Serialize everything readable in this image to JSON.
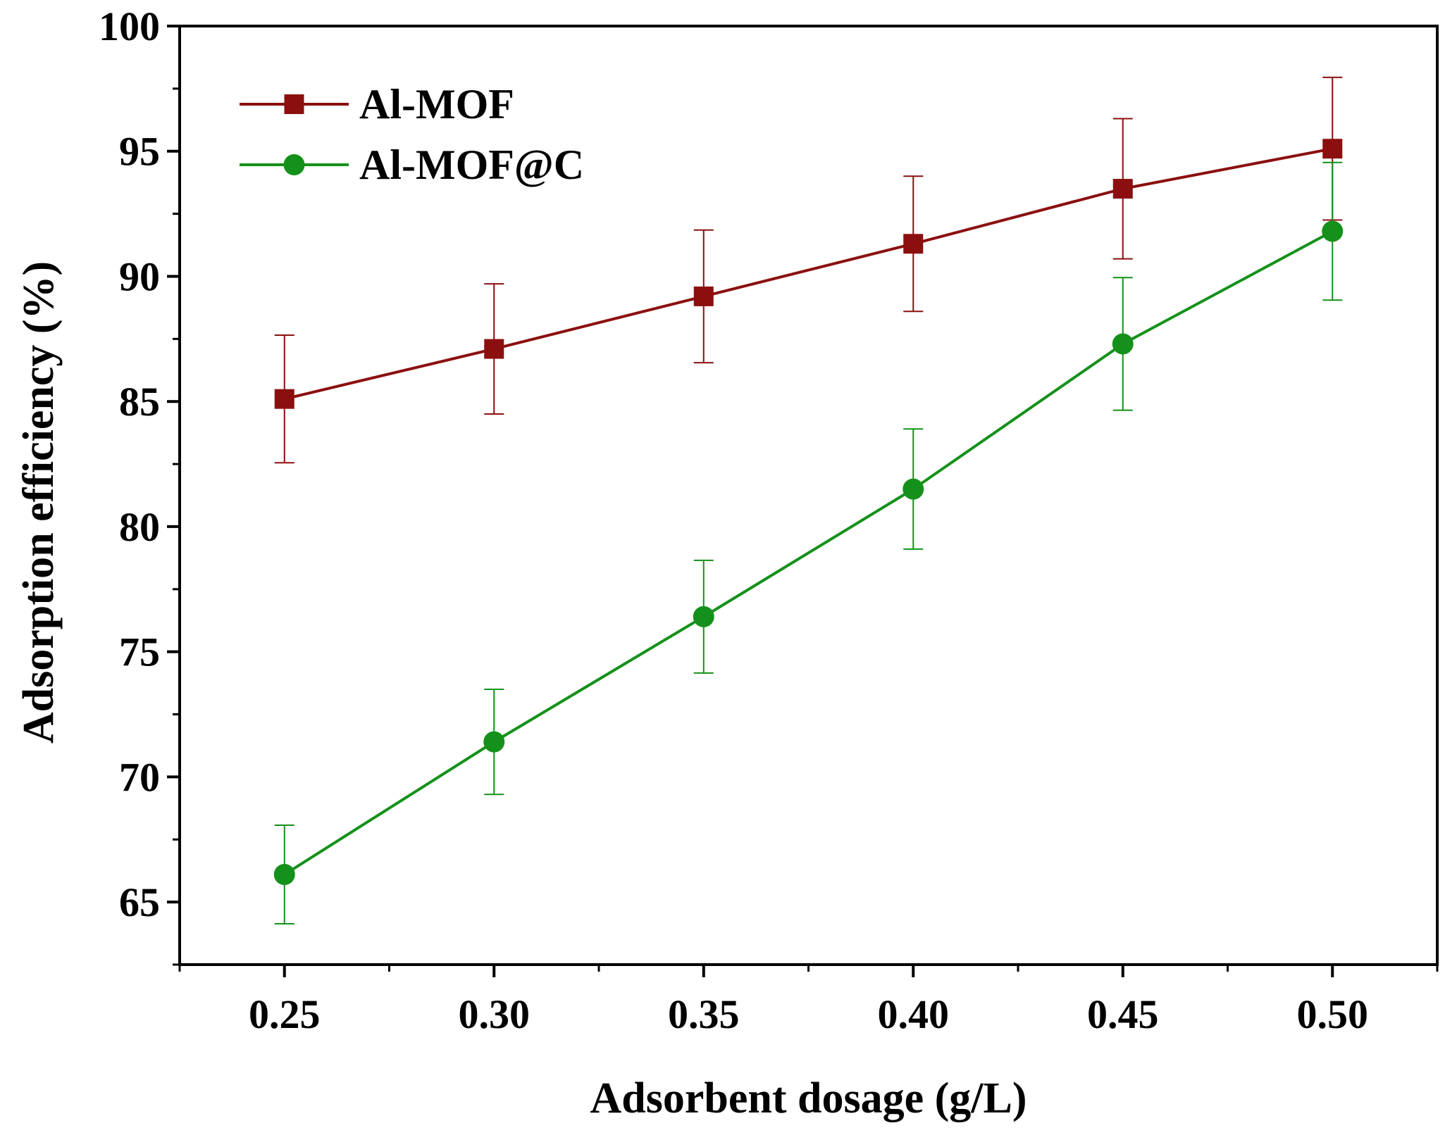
{
  "chart_data": {
    "type": "line",
    "title": "",
    "xlabel": "Adsorbent dosage (g/L)",
    "ylabel": "Adsorption efficiency (%)",
    "xlim": [
      0.225,
      0.525
    ],
    "ylim": [
      62.5,
      100
    ],
    "x": [
      0.25,
      0.3,
      0.35,
      0.4,
      0.45,
      0.5
    ],
    "x_tick_labels": [
      "0.25",
      "0.30",
      "0.35",
      "0.40",
      "0.45",
      "0.50"
    ],
    "y_ticks": [
      65,
      70,
      75,
      80,
      85,
      90,
      95,
      100
    ],
    "y_tick_labels": [
      "65",
      "70",
      "75",
      "80",
      "85",
      "90",
      "95",
      "100"
    ],
    "legend_position": "top-left",
    "series": [
      {
        "name": "Al-MOF",
        "color": "#8b0f0f",
        "marker": "square",
        "values": [
          85.1,
          87.1,
          89.2,
          91.3,
          93.5,
          95.1
        ],
        "errors": [
          2.55,
          2.6,
          2.65,
          2.7,
          2.8,
          2.85
        ]
      },
      {
        "name": "Al-MOF@C",
        "color": "#14911a",
        "marker": "circle",
        "values": [
          66.1,
          71.4,
          76.4,
          81.5,
          87.3,
          91.8
        ],
        "errors": [
          1.97,
          2.1,
          2.25,
          2.4,
          2.65,
          2.75
        ]
      }
    ]
  }
}
